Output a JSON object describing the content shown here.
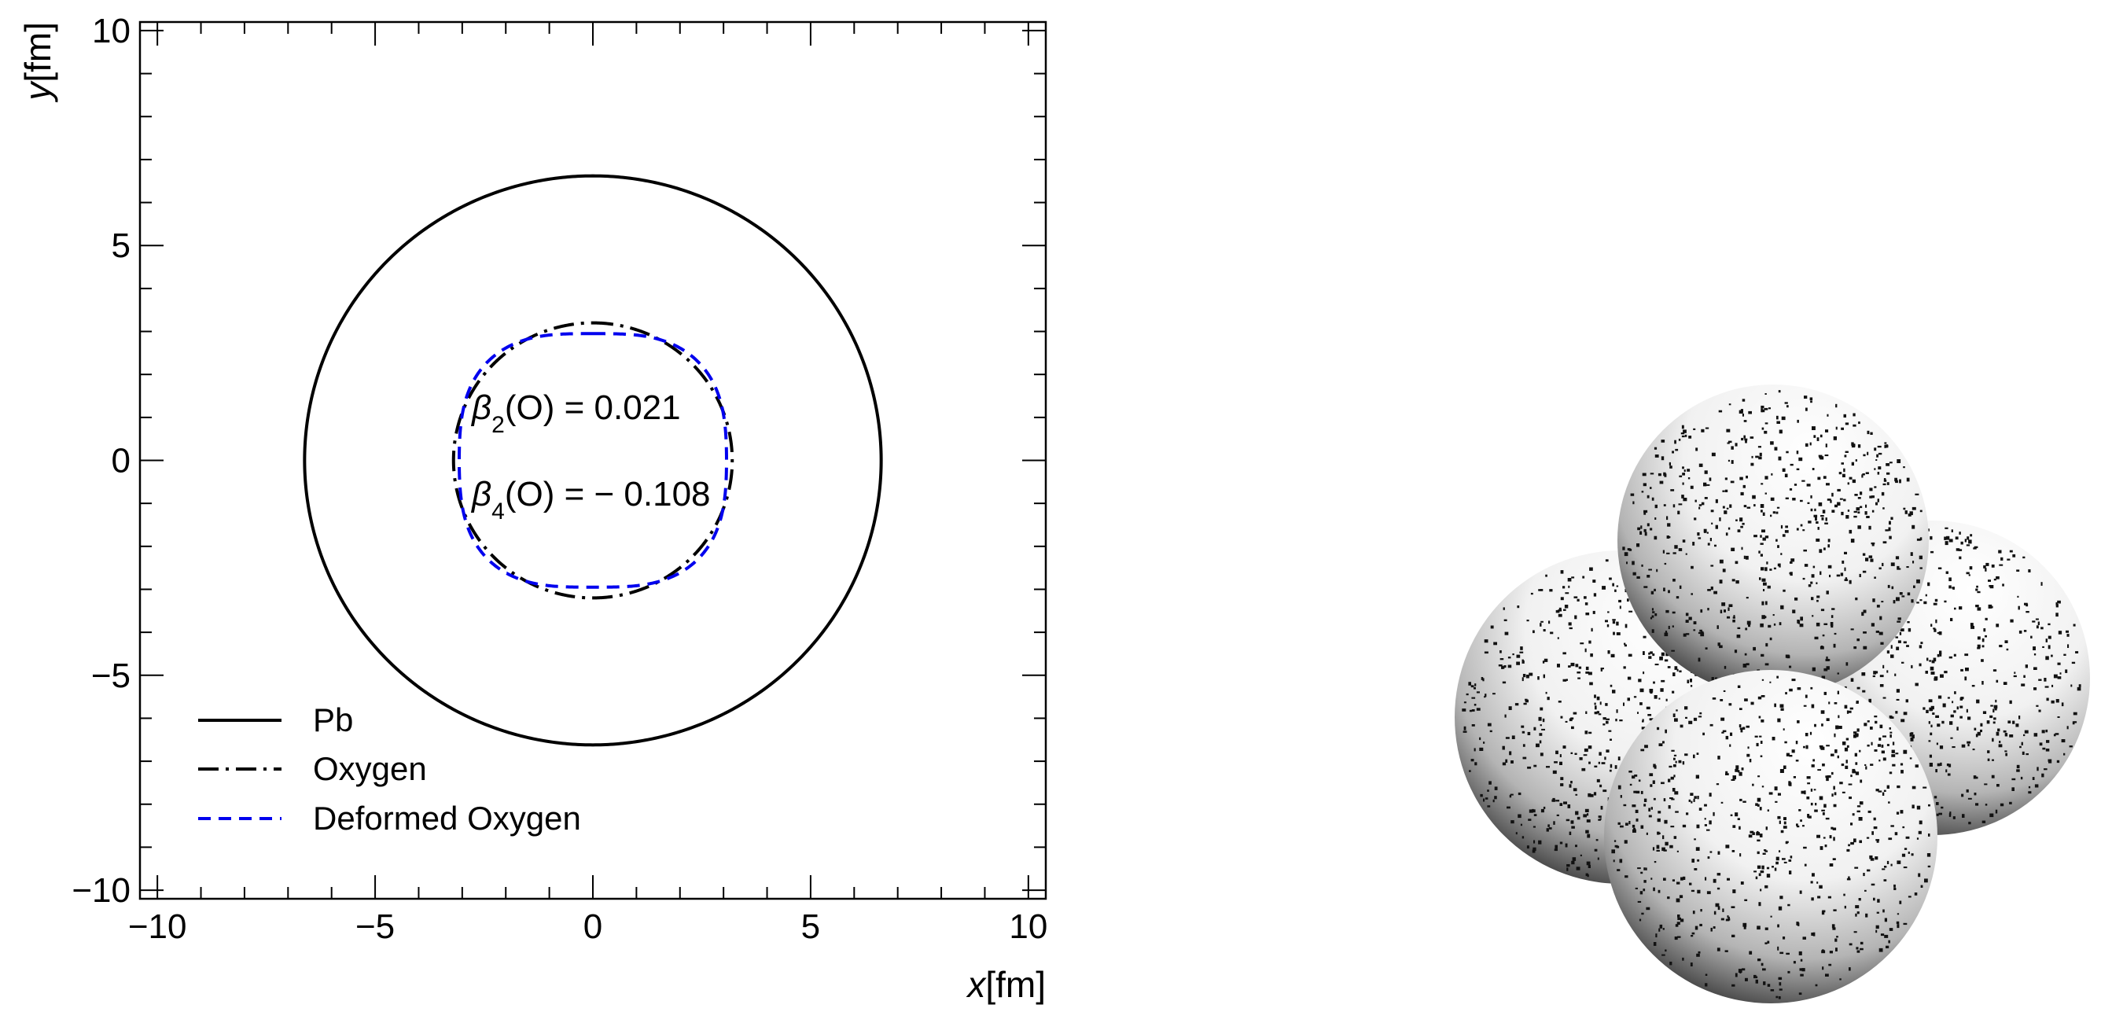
{
  "chart_data": [
    {
      "type": "line",
      "xlabel_var": "x",
      "xlabel_unit": "[fm]",
      "ylabel_var": "y",
      "ylabel_unit": "[fm]",
      "xlim": [
        -10.4,
        10.4
      ],
      "ylim": [
        -10.2,
        10.2
      ],
      "xticks": [
        -10,
        -5,
        0,
        5,
        10
      ],
      "yticks": [
        -10,
        -5,
        0,
        5,
        10
      ],
      "xtick_labels": [
        "−10",
        "−5",
        "0",
        "5",
        "10"
      ],
      "ytick_labels": [
        "−10",
        "−5",
        "0",
        "5",
        "10"
      ],
      "grid": false,
      "legend_position": "bottom-left",
      "series": [
        {
          "name": "Pb",
          "shape": "circle",
          "radius": 6.62,
          "color": "#000000",
          "style": "solid"
        },
        {
          "name": "Oxygen",
          "shape": "circle",
          "radius": 3.2,
          "color": "#000000",
          "style": "dash-dot"
        },
        {
          "name": "Deformed Oxygen",
          "shape": "deformed",
          "r0": 3.2,
          "beta2": 0.021,
          "beta4": -0.108,
          "color": "#0000ee",
          "style": "dashed"
        }
      ],
      "annotations": [
        {
          "text_symbol": "β",
          "text_index": "2",
          "text_rest": "(O) = 0.021"
        },
        {
          "text_symbol": "β",
          "text_index": "4",
          "text_rest": "(O) = − 0.108"
        }
      ]
    }
  ],
  "image_right": {
    "depicts": "nucleus-cluster-render"
  }
}
